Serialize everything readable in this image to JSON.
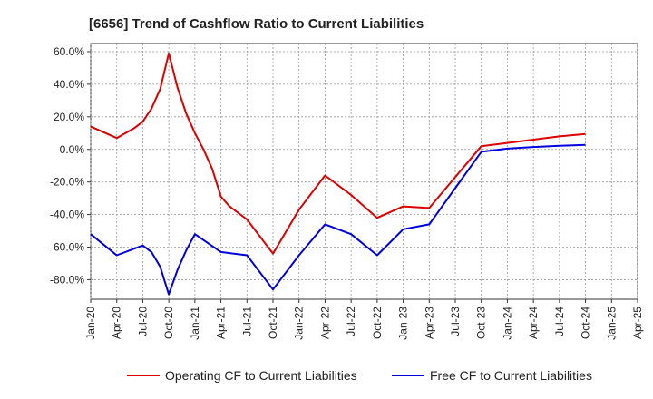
{
  "chart_data": {
    "type": "line",
    "title": "[6656]  Trend of Cashflow Ratio to Current Liabilities",
    "xlabel": "",
    "ylabel": "",
    "grid": true,
    "legend_position": "bottom",
    "x_ticks": [
      "Jan-20",
      "Apr-20",
      "Jul-20",
      "Oct-20",
      "Jan-21",
      "Apr-21",
      "Jul-21",
      "Oct-21",
      "Jan-22",
      "Apr-22",
      "Jul-22",
      "Oct-22",
      "Jan-23",
      "Apr-23",
      "Jul-23",
      "Oct-23",
      "Jan-24",
      "Apr-24",
      "Jul-24",
      "Oct-24",
      "Jan-25",
      "Apr-25"
    ],
    "y_ticks": [
      "60.0%",
      "40.0%",
      "20.0%",
      "0.0%",
      "-20.0%",
      "-40.0%",
      "-60.0%",
      "-80.0%"
    ],
    "ylim": [
      -92,
      65
    ],
    "series": [
      {
        "name": "Operating CF to Current Liabilities",
        "color": "#dd0000",
        "points": [
          [
            "Jan-20",
            14
          ],
          [
            "Apr-20",
            7
          ],
          [
            "Jun-20",
            13
          ],
          [
            "Jul-20",
            17
          ],
          [
            "Aug-20",
            25
          ],
          [
            "Sep-20",
            37
          ],
          [
            "Oct-20",
            59
          ],
          [
            "Nov-20",
            38
          ],
          [
            "Dec-20",
            22
          ],
          [
            "Jan-21",
            10
          ],
          [
            "Feb-21",
            0
          ],
          [
            "Mar-21",
            -12
          ],
          [
            "Apr-21",
            -29
          ],
          [
            "May-21",
            -35
          ],
          [
            "Jul-21",
            -43
          ],
          [
            "Oct-21",
            -64
          ],
          [
            "Jan-22",
            -37
          ],
          [
            "Apr-22",
            -16
          ],
          [
            "Jul-22",
            -28
          ],
          [
            "Oct-22",
            -42
          ],
          [
            "Jan-23",
            -35
          ],
          [
            "Apr-23",
            -36
          ],
          [
            "Oct-23",
            2
          ],
          [
            "Jan-24",
            4
          ],
          [
            "Apr-24",
            6
          ],
          [
            "Jul-24",
            8
          ],
          [
            "Oct-24",
            9.5
          ]
        ]
      },
      {
        "name": "Free CF to Current Liabilities",
        "color": "#0000dd",
        "points": [
          [
            "Jan-20",
            -52
          ],
          [
            "Apr-20",
            -65
          ],
          [
            "Jul-20",
            -59
          ],
          [
            "Aug-20",
            -63
          ],
          [
            "Sep-20",
            -72
          ],
          [
            "Oct-20",
            -89
          ],
          [
            "Nov-20",
            -74
          ],
          [
            "Dec-20",
            -62
          ],
          [
            "Jan-21",
            -52
          ],
          [
            "Apr-21",
            -63
          ],
          [
            "Jul-21",
            -65
          ],
          [
            "Oct-21",
            -86
          ],
          [
            "Jan-22",
            -65
          ],
          [
            "Apr-22",
            -46
          ],
          [
            "Jul-22",
            -52
          ],
          [
            "Oct-22",
            -65
          ],
          [
            "Jan-23",
            -49
          ],
          [
            "Apr-23",
            -46
          ],
          [
            "Oct-23",
            -1.5
          ],
          [
            "Jan-24",
            0.5
          ],
          [
            "Apr-24",
            1.5
          ],
          [
            "Jul-24",
            2.2
          ],
          [
            "Oct-24",
            2.8
          ]
        ]
      }
    ]
  }
}
